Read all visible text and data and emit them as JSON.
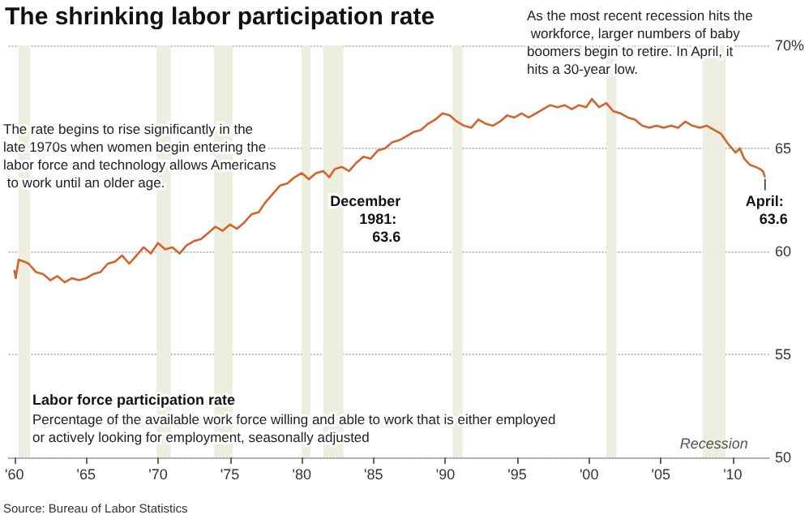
{
  "chart_data": {
    "type": "line",
    "title": "The shrinking labor participation rate",
    "annotations": [
      "The rate begins to rise significantly in the late 1970s when women begin entering the labor force and technology allows Americans to work until an older age.",
      "As the most recent recession hits the workforce, larger numbers of baby boomers begin to retire. In April, it hits a 30-year low.",
      "Labor force participation rate",
      "Percentage of the available work force willing and able to work that is either employed or actively looking for employment, seasonally adjusted",
      "Source: Bureau of Labor Statistics",
      {
        "text": "December 1981: 63.6",
        "x": 1981.92,
        "y": 63.6
      },
      {
        "text": "April: 63.6",
        "x": 2012.25,
        "y": 63.6
      }
    ],
    "series": [
      {
        "color": "#d2642c",
        "x": [
          1960.0,
          1960.1,
          1960.3,
          1960.7,
          1961.0,
          1961.5,
          1962.0,
          1962.5,
          1963.0,
          1963.5,
          1964.0,
          1964.5,
          1965.0,
          1965.5,
          1966.0,
          1966.5,
          1967.0,
          1967.5,
          1968.0,
          1968.5,
          1969.0,
          1969.5,
          1970.0,
          1970.5,
          1971.0,
          1971.5,
          1972.0,
          1972.5,
          1973.0,
          1973.5,
          1974.0,
          1974.5,
          1975.0,
          1975.5,
          1976.0,
          1976.5,
          1977.0,
          1977.5,
          1978.0,
          1978.5,
          1979.0,
          1979.5,
          1980.0,
          1980.5,
          1981.0,
          1981.5,
          1981.92,
          1982.3,
          1982.8,
          1983.3,
          1983.8,
          1984.3,
          1984.8,
          1985.3,
          1985.8,
          1986.3,
          1986.8,
          1987.3,
          1987.8,
          1988.3,
          1988.8,
          1989.3,
          1989.8,
          1990.3,
          1990.8,
          1991.3,
          1991.8,
          1992.3,
          1992.8,
          1993.3,
          1993.8,
          1994.3,
          1994.8,
          1995.3,
          1995.8,
          1996.3,
          1996.8,
          1997.3,
          1997.8,
          1998.3,
          1998.8,
          1999.3,
          1999.8,
          2000.2,
          2000.7,
          2001.2,
          2001.7,
          2002.2,
          2002.7,
          2003.2,
          2003.7,
          2004.2,
          2004.7,
          2005.2,
          2005.7,
          2006.2,
          2006.7,
          2007.2,
          2007.7,
          2008.2,
          2008.7,
          2009.2,
          2009.7,
          2010.2,
          2010.5,
          2010.8,
          2011.2,
          2011.6,
          2011.9,
          2012.1,
          2012.25
        ],
        "values": [
          59.1,
          58.7,
          59.6,
          59.5,
          59.4,
          59.0,
          58.9,
          58.6,
          58.8,
          58.5,
          58.7,
          58.6,
          58.7,
          58.9,
          59.0,
          59.4,
          59.5,
          59.8,
          59.4,
          59.8,
          60.2,
          59.9,
          60.4,
          60.1,
          60.2,
          59.9,
          60.3,
          60.5,
          60.6,
          60.9,
          61.2,
          61.0,
          61.3,
          61.1,
          61.4,
          61.8,
          61.9,
          62.4,
          62.8,
          63.2,
          63.3,
          63.6,
          63.8,
          63.5,
          63.8,
          63.9,
          63.6,
          64.0,
          64.1,
          63.9,
          64.3,
          64.6,
          64.5,
          64.9,
          65.0,
          65.3,
          65.4,
          65.6,
          65.8,
          65.9,
          66.2,
          66.4,
          66.7,
          66.6,
          66.3,
          66.1,
          66.0,
          66.4,
          66.2,
          66.1,
          66.3,
          66.6,
          66.5,
          66.7,
          66.5,
          66.7,
          66.9,
          67.1,
          67.0,
          67.1,
          66.9,
          67.1,
          67.0,
          67.4,
          67.0,
          67.2,
          66.8,
          66.7,
          66.5,
          66.4,
          66.1,
          66.0,
          66.1,
          66.0,
          66.1,
          66.0,
          66.3,
          66.1,
          66.0,
          66.1,
          65.9,
          65.7,
          65.2,
          64.8,
          65.0,
          64.5,
          64.2,
          64.1,
          64.0,
          63.9,
          63.6
        ]
      }
    ],
    "xlim": [
      1959.6,
      2012.6
    ],
    "xticks": [
      {
        "value": 1960,
        "label": "'60"
      },
      {
        "value": 1965,
        "label": "'65"
      },
      {
        "value": 1970,
        "label": "'70"
      },
      {
        "value": 1975,
        "label": "'75"
      },
      {
        "value": 1980,
        "label": "'80"
      },
      {
        "value": 1985,
        "label": "'85"
      },
      {
        "value": 1990,
        "label": "'90"
      },
      {
        "value": 1995,
        "label": "'95"
      },
      {
        "value": 2000,
        "label": "'00"
      },
      {
        "value": 2005,
        "label": "'05"
      },
      {
        "value": 2010,
        "label": "'10"
      }
    ],
    "ylim": [
      50,
      70
    ],
    "yticks": [
      50,
      55,
      60,
      65,
      {
        "value": 70,
        "label": "70%"
      }
    ],
    "grid": "y",
    "marker": "none",
    "line_style": "solid",
    "bands": [
      {
        "axis": "x",
        "from": 1960.3,
        "to": 1961.1,
        "color": "#eeeee0"
      },
      {
        "axis": "x",
        "from": 1969.9,
        "to": 1970.9,
        "color": "#eeeee0"
      },
      {
        "axis": "x",
        "from": 1973.9,
        "to": 1975.2,
        "color": "#eeeee0"
      },
      {
        "axis": "x",
        "from": 1980.0,
        "to": 1980.6,
        "color": "#eeeee0"
      },
      {
        "axis": "x",
        "from": 1981.5,
        "to": 1982.9,
        "color": "#eeeee0"
      },
      {
        "axis": "x",
        "from": 1990.5,
        "to": 1991.2,
        "color": "#eeeee0"
      },
      {
        "axis": "x",
        "from": 2001.2,
        "to": 2001.9,
        "color": "#eeeee0"
      },
      {
        "axis": "x",
        "from": 2007.9,
        "to": 2009.5,
        "color": "#eeeee0",
        "label": "Recession"
      }
    ]
  }
}
